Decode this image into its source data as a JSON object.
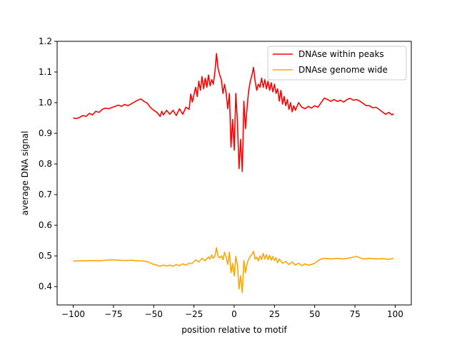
{
  "chart_data": {
    "type": "line",
    "title": "",
    "xlabel": "position relative to motif",
    "ylabel": "average DNA signal",
    "xlim": [
      -110,
      110
    ],
    "ylim": [
      0.34,
      1.2
    ],
    "xticks": [
      -100,
      -75,
      -50,
      -25,
      0,
      25,
      50,
      75,
      100
    ],
    "xtick_labels": [
      "−100",
      "−75",
      "−50",
      "−25",
      "0",
      "25",
      "50",
      "75",
      "100"
    ],
    "yticks": [
      0.4,
      0.5,
      0.6,
      0.7,
      0.8,
      0.9,
      1.0,
      1.1,
      1.2
    ],
    "ytick_labels": [
      "0.4",
      "0.5",
      "0.6",
      "0.7",
      "0.8",
      "0.9",
      "1.0",
      "1.1",
      "1.2"
    ],
    "grid": false,
    "legend_position": "top-right",
    "series": [
      {
        "name": "DNAse within peaks",
        "color": "#ff0000",
        "points": [
          [
            -100,
            0.95
          ],
          [
            -98,
            0.948
          ],
          [
            -96,
            0.952
          ],
          [
            -94,
            0.958
          ],
          [
            -92,
            0.955
          ],
          [
            -90,
            0.965
          ],
          [
            -88,
            0.96
          ],
          [
            -86,
            0.972
          ],
          [
            -84,
            0.968
          ],
          [
            -82,
            0.978
          ],
          [
            -80,
            0.982
          ],
          [
            -78,
            0.98
          ],
          [
            -76,
            0.984
          ],
          [
            -74,
            0.988
          ],
          [
            -72,
            0.992
          ],
          [
            -70,
            0.988
          ],
          [
            -68,
            0.994
          ],
          [
            -66,
            0.99
          ],
          [
            -64,
            0.996
          ],
          [
            -62,
            1.002
          ],
          [
            -60,
            1.008
          ],
          [
            -58,
            1.012
          ],
          [
            -56,
            1.004
          ],
          [
            -54,
            0.998
          ],
          [
            -52,
            0.984
          ],
          [
            -50,
            0.975
          ],
          [
            -48,
            0.968
          ],
          [
            -46,
            0.955
          ],
          [
            -45,
            0.972
          ],
          [
            -44,
            0.96
          ],
          [
            -42,
            0.975
          ],
          [
            -40,
            0.962
          ],
          [
            -38,
            0.975
          ],
          [
            -36,
            0.958
          ],
          [
            -34,
            0.98
          ],
          [
            -32,
            0.962
          ],
          [
            -30,
            0.985
          ],
          [
            -28,
            0.978
          ],
          [
            -27,
            1.028
          ],
          [
            -26,
            1.002
          ],
          [
            -24,
            1.05
          ],
          [
            -23,
            1.02
          ],
          [
            -22,
            1.07
          ],
          [
            -21,
            1.04
          ],
          [
            -20,
            1.085
          ],
          [
            -19,
            1.045
          ],
          [
            -18,
            1.08
          ],
          [
            -17,
            1.05
          ],
          [
            -16,
            1.09
          ],
          [
            -15,
            1.055
          ],
          [
            -14,
            1.075
          ],
          [
            -13,
            1.06
          ],
          [
            -12,
            1.1
          ],
          [
            -11,
            1.16
          ],
          [
            -10,
            1.11
          ],
          [
            -9,
            1.09
          ],
          [
            -8,
            1.075
          ],
          [
            -7,
            1.03
          ],
          [
            -6,
            1.06
          ],
          [
            -5,
            1.03
          ],
          [
            -4,
            0.98
          ],
          [
            -3,
            1.03
          ],
          [
            -2,
            0.855
          ],
          [
            -1,
            0.945
          ],
          [
            0,
            0.845
          ],
          [
            1,
            1.03
          ],
          [
            2,
            0.935
          ],
          [
            3,
            0.785
          ],
          [
            4,
            0.88
          ],
          [
            5,
            0.775
          ],
          [
            6,
            1.005
          ],
          [
            7,
            0.915
          ],
          [
            8,
            0.985
          ],
          [
            9,
            1.04
          ],
          [
            10,
            1.07
          ],
          [
            11,
            1.09
          ],
          [
            12,
            1.115
          ],
          [
            13,
            1.07
          ],
          [
            14,
            1.04
          ],
          [
            15,
            1.06
          ],
          [
            16,
            1.05
          ],
          [
            17,
            1.08
          ],
          [
            18,
            1.05
          ],
          [
            19,
            1.075
          ],
          [
            20,
            1.045
          ],
          [
            21,
            1.07
          ],
          [
            22,
            1.04
          ],
          [
            23,
            1.065
          ],
          [
            24,
            1.035
          ],
          [
            25,
            1.06
          ],
          [
            26,
            1.03
          ],
          [
            27,
            1.045
          ],
          [
            28,
            1.005
          ],
          [
            29,
            1.04
          ],
          [
            30,
            0.995
          ],
          [
            31,
            1.02
          ],
          [
            32,
            0.99
          ],
          [
            33,
            1.01
          ],
          [
            34,
            0.978
          ],
          [
            35,
            1.0
          ],
          [
            36,
            0.97
          ],
          [
            37,
            0.99
          ],
          [
            38,
            0.975
          ],
          [
            40,
            1.0
          ],
          [
            42,
            0.985
          ],
          [
            44,
            0.98
          ],
          [
            46,
            0.988
          ],
          [
            48,
            0.982
          ],
          [
            50,
            0.99
          ],
          [
            52,
            0.985
          ],
          [
            54,
            1.0
          ],
          [
            56,
            1.015
          ],
          [
            58,
            1.01
          ],
          [
            60,
            1.004
          ],
          [
            62,
            1.01
          ],
          [
            64,
            1.004
          ],
          [
            66,
            1.008
          ],
          [
            68,
            1.002
          ],
          [
            70,
            1.01
          ],
          [
            72,
            1.014
          ],
          [
            74,
            1.008
          ],
          [
            76,
            1.01
          ],
          [
            78,
            1.005
          ],
          [
            80,
            0.998
          ],
          [
            82,
            0.99
          ],
          [
            84,
            0.99
          ],
          [
            86,
            0.983
          ],
          [
            88,
            0.985
          ],
          [
            90,
            0.978
          ],
          [
            92,
            0.97
          ],
          [
            94,
            0.962
          ],
          [
            96,
            0.968
          ],
          [
            98,
            0.96
          ],
          [
            99,
            0.964
          ]
        ]
      },
      {
        "name": "DNAse genome wide",
        "color": "#ffa500",
        "points": [
          [
            -100,
            0.483
          ],
          [
            -96,
            0.484
          ],
          [
            -92,
            0.484
          ],
          [
            -88,
            0.485
          ],
          [
            -84,
            0.484
          ],
          [
            -80,
            0.486
          ],
          [
            -76,
            0.487
          ],
          [
            -72,
            0.486
          ],
          [
            -68,
            0.485
          ],
          [
            -64,
            0.486
          ],
          [
            -60,
            0.484
          ],
          [
            -56,
            0.483
          ],
          [
            -54,
            0.481
          ],
          [
            -52,
            0.477
          ],
          [
            -50,
            0.472
          ],
          [
            -48,
            0.47
          ],
          [
            -46,
            0.466
          ],
          [
            -44,
            0.47
          ],
          [
            -42,
            0.467
          ],
          [
            -40,
            0.47
          ],
          [
            -38,
            0.466
          ],
          [
            -36,
            0.472
          ],
          [
            -34,
            0.468
          ],
          [
            -32,
            0.474
          ],
          [
            -30,
            0.47
          ],
          [
            -28,
            0.476
          ],
          [
            -26,
            0.476
          ],
          [
            -24,
            0.487
          ],
          [
            -22,
            0.48
          ],
          [
            -20,
            0.492
          ],
          [
            -18,
            0.484
          ],
          [
            -16,
            0.497
          ],
          [
            -15,
            0.49
          ],
          [
            -14,
            0.503
          ],
          [
            -13,
            0.492
          ],
          [
            -12,
            0.5
          ],
          [
            -11,
            0.527
          ],
          [
            -10,
            0.498
          ],
          [
            -9,
            0.494
          ],
          [
            -8,
            0.5
          ],
          [
            -7,
            0.488
          ],
          [
            -6,
            0.512
          ],
          [
            -5,
            0.494
          ],
          [
            -4,
            0.472
          ],
          [
            -3,
            0.512
          ],
          [
            -2,
            0.445
          ],
          [
            -1,
            0.475
          ],
          [
            0,
            0.435
          ],
          [
            1,
            0.498
          ],
          [
            2,
            0.47
          ],
          [
            3,
            0.392
          ],
          [
            4,
            0.435
          ],
          [
            5,
            0.38
          ],
          [
            6,
            0.485
          ],
          [
            7,
            0.445
          ],
          [
            8,
            0.475
          ],
          [
            9,
            0.49
          ],
          [
            10,
            0.498
          ],
          [
            11,
            0.505
          ],
          [
            12,
            0.515
          ],
          [
            13,
            0.49
          ],
          [
            14,
            0.496
          ],
          [
            15,
            0.484
          ],
          [
            16,
            0.5
          ],
          [
            17,
            0.488
          ],
          [
            18,
            0.508
          ],
          [
            19,
            0.49
          ],
          [
            20,
            0.504
          ],
          [
            21,
            0.488
          ],
          [
            22,
            0.502
          ],
          [
            23,
            0.486
          ],
          [
            24,
            0.498
          ],
          [
            25,
            0.485
          ],
          [
            26,
            0.494
          ],
          [
            27,
            0.478
          ],
          [
            28,
            0.49
          ],
          [
            30,
            0.476
          ],
          [
            32,
            0.482
          ],
          [
            34,
            0.472
          ],
          [
            36,
            0.48
          ],
          [
            38,
            0.47
          ],
          [
            40,
            0.476
          ],
          [
            42,
            0.468
          ],
          [
            44,
            0.474
          ],
          [
            46,
            0.47
          ],
          [
            48,
            0.472
          ],
          [
            50,
            0.476
          ],
          [
            52,
            0.484
          ],
          [
            54,
            0.49
          ],
          [
            56,
            0.492
          ],
          [
            60,
            0.49
          ],
          [
            64,
            0.492
          ],
          [
            68,
            0.49
          ],
          [
            72,
            0.494
          ],
          [
            76,
            0.498
          ],
          [
            78,
            0.494
          ],
          [
            80,
            0.49
          ],
          [
            84,
            0.492
          ],
          [
            88,
            0.49
          ],
          [
            92,
            0.491
          ],
          [
            96,
            0.489
          ],
          [
            99,
            0.492
          ]
        ]
      }
    ]
  }
}
